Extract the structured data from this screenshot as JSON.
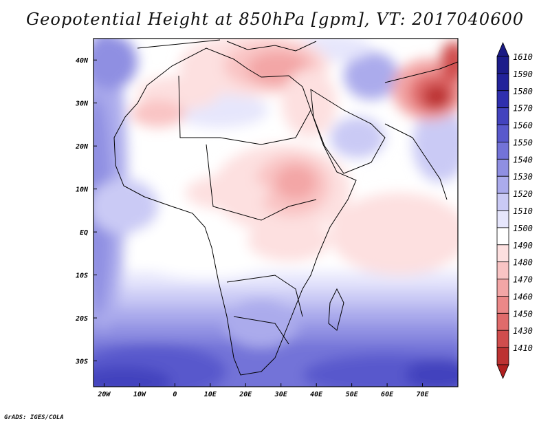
{
  "title": "Geopotential Height at 850hPa [gpm], VT: 2017040600",
  "footer": "GrADS: IGES/COLA",
  "map": {
    "lon_range": [
      -23,
      80
    ],
    "lat_range": [
      -36,
      45
    ],
    "lon_ticks": [
      {
        "value": -20,
        "label": "20W"
      },
      {
        "value": -10,
        "label": "10W"
      },
      {
        "value": 0,
        "label": "0"
      },
      {
        "value": 10,
        "label": "10E"
      },
      {
        "value": 20,
        "label": "20E"
      },
      {
        "value": 30,
        "label": "30E"
      },
      {
        "value": 40,
        "label": "40E"
      },
      {
        "value": 50,
        "label": "50E"
      },
      {
        "value": 60,
        "label": "60E"
      },
      {
        "value": 70,
        "label": "70E"
      }
    ],
    "lat_ticks": [
      {
        "value": 40,
        "label": "40N"
      },
      {
        "value": 30,
        "label": "30N"
      },
      {
        "value": 20,
        "label": "20N"
      },
      {
        "value": 10,
        "label": "10N"
      },
      {
        "value": 0,
        "label": "EQ"
      },
      {
        "value": -10,
        "label": "10S"
      },
      {
        "value": -20,
        "label": "20S"
      },
      {
        "value": -30,
        "label": "30S"
      }
    ]
  },
  "colorbar": {
    "levels": [
      {
        "label": "1610",
        "color": "#1c1c8a"
      },
      {
        "label": "1590",
        "color": "#22229a"
      },
      {
        "label": "1580",
        "color": "#2f2fae"
      },
      {
        "label": "1570",
        "color": "#4343be"
      },
      {
        "label": "1560",
        "color": "#5959cc"
      },
      {
        "label": "1550",
        "color": "#7373d8"
      },
      {
        "label": "1540",
        "color": "#8f8fe2"
      },
      {
        "label": "1530",
        "color": "#ababec"
      },
      {
        "label": "1520",
        "color": "#cacaf5"
      },
      {
        "label": "1510",
        "color": "#e6e6fc"
      },
      {
        "label": "1500",
        "color": "#ffffff"
      },
      {
        "label": "1490",
        "color": "#fde0e0"
      },
      {
        "label": "1480",
        "color": "#f9c4c4"
      },
      {
        "label": "1470",
        "color": "#f3a6a6"
      },
      {
        "label": "1460",
        "color": "#eb8888"
      },
      {
        "label": "1450",
        "color": "#e06b6b"
      },
      {
        "label": "1430",
        "color": "#d04d4d"
      },
      {
        "label": "1410",
        "color": "#bc3232"
      }
    ],
    "top_arrow_color": "#1a1a84",
    "bottom_arrow_color": "#b02020"
  }
}
